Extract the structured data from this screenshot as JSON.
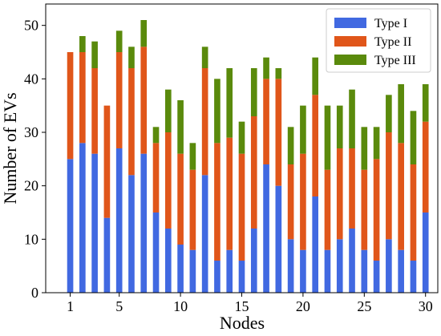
{
  "chart_data": {
    "type": "bar",
    "stacked": true,
    "title": "",
    "xlabel": "Nodes",
    "ylabel": "Number of EVs",
    "xlim": [
      -1,
      31
    ],
    "ylim": [
      0,
      54
    ],
    "x": [
      1,
      2,
      3,
      4,
      5,
      6,
      7,
      8,
      9,
      10,
      11,
      12,
      13,
      14,
      15,
      16,
      17,
      18,
      19,
      20,
      21,
      22,
      23,
      24,
      25,
      26,
      27,
      28,
      29,
      30
    ],
    "x_ticks": [
      1,
      5,
      10,
      15,
      20,
      25,
      30
    ],
    "x_tick_labels": [
      "1",
      "5",
      "10",
      "15",
      "20",
      "25",
      "30"
    ],
    "y_ticks": [
      0,
      10,
      20,
      30,
      40,
      50
    ],
    "y_tick_labels": [
      "0",
      "10",
      "20",
      "30",
      "40",
      "50"
    ],
    "grid": false,
    "legend_position": "top-right",
    "series": [
      {
        "name": "Type I",
        "color": "#4169e1",
        "values": [
          25,
          28,
          26,
          14,
          27,
          22,
          26,
          15,
          12,
          9,
          8,
          22,
          6,
          8,
          6,
          12,
          24,
          20,
          10,
          8,
          18,
          8,
          10,
          12,
          8,
          6,
          10,
          8,
          6,
          15
        ]
      },
      {
        "name": "Type II",
        "color": "#e0561a",
        "values": [
          20,
          17,
          16,
          21,
          18,
          20,
          20,
          13,
          18,
          17,
          15,
          20,
          22,
          21,
          20,
          21,
          16,
          20,
          14,
          18,
          19,
          15,
          17,
          15,
          15,
          19,
          20,
          20,
          18,
          17
        ]
      },
      {
        "name": "Type III",
        "color": "#5a8a0c",
        "values": [
          0,
          3,
          5,
          0,
          4,
          4,
          5,
          3,
          8,
          10,
          5,
          4,
          12,
          13,
          6,
          9,
          4,
          2,
          7,
          9,
          7,
          12,
          8,
          11,
          8,
          6,
          7,
          11,
          10,
          7
        ]
      }
    ]
  }
}
